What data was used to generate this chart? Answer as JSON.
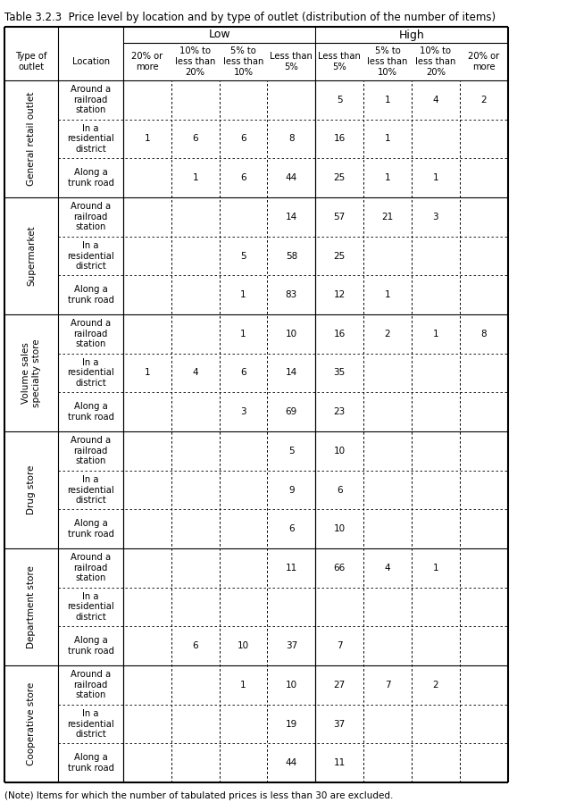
{
  "title": "Table 3.2.3  Price level by location and by type of outlet (distribution of the number of items)",
  "note": "(Note) Items for which the number of tabulated prices is less than 30 are excluded.",
  "col_headers_row1": [
    "",
    "",
    "Low",
    "",
    "",
    "",
    "High",
    "",
    "",
    ""
  ],
  "col_headers_row2": [
    "Type of\noutlet",
    "Location",
    "20% or\nmore",
    "10% to\nless than\n20%",
    "5% to\nless than\n10%",
    "Less than\n5%",
    "Less than\n5%",
    "5% to\nless than\n10%",
    "10% to\nless than\n20%",
    "20% or\nmore"
  ],
  "outlet_types": [
    "General retail outlet",
    "Supermarket",
    "Volume sales\nspecialty store",
    "Drug store",
    "Department store",
    "Cooperative store"
  ],
  "locations": [
    "Around a\nrailroad\nstation",
    "In a\nresidential\ndistrict",
    "Along a\ntrunk road"
  ],
  "data": [
    [
      [
        "",
        "",
        "",
        "",
        "5",
        "1",
        "4",
        "2"
      ],
      [
        "1",
        "6",
        "6",
        "8",
        "16",
        "1",
        "",
        ""
      ],
      [
        "",
        "1",
        "6",
        "44",
        "25",
        "1",
        "1",
        ""
      ]
    ],
    [
      [
        "",
        "",
        "",
        "14",
        "57",
        "21",
        "3",
        ""
      ],
      [
        "",
        "",
        "5",
        "58",
        "25",
        "",
        "",
        ""
      ],
      [
        "",
        "",
        "1",
        "83",
        "12",
        "1",
        "",
        ""
      ]
    ],
    [
      [
        "",
        "",
        "1",
        "10",
        "16",
        "2",
        "1",
        "8"
      ],
      [
        "1",
        "4",
        "6",
        "14",
        "35",
        "",
        "",
        ""
      ],
      [
        "",
        "",
        "3",
        "69",
        "23",
        "",
        "",
        ""
      ]
    ],
    [
      [
        "",
        "",
        "",
        "5",
        "10",
        "",
        "",
        ""
      ],
      [
        "",
        "",
        "",
        "9",
        "6",
        "",
        "",
        ""
      ],
      [
        "",
        "",
        "",
        "6",
        "10",
        "",
        "",
        ""
      ]
    ],
    [
      [
        "",
        "",
        "",
        "11",
        "66",
        "4",
        "1",
        ""
      ],
      [
        "",
        "",
        "",
        "",
        "",
        "",
        "",
        ""
      ],
      [
        "",
        "6",
        "10",
        "37",
        "7",
        "",
        "",
        ""
      ]
    ],
    [
      [
        "",
        "",
        "1",
        "10",
        "27",
        "7",
        "2",
        ""
      ],
      [
        "",
        "",
        "",
        "19",
        "37",
        "",
        "",
        ""
      ],
      [
        "",
        "",
        "",
        "44",
        "11",
        "",
        "",
        ""
      ]
    ]
  ]
}
